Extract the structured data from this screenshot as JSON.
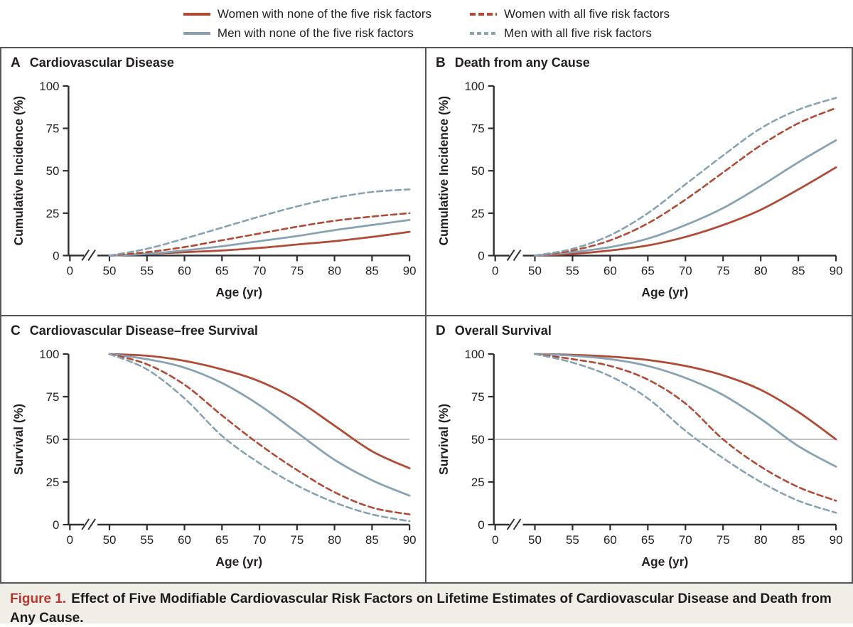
{
  "colors": {
    "women": "#b24a35",
    "men": "#87a2b3",
    "axis": "#2f2f31",
    "text": "#231f20",
    "border": "#55565a",
    "reference_line": "#aeaeae",
    "caption_bg": "#f1eee7",
    "caption_label_red": "#b5392f"
  },
  "legend": {
    "columns": [
      {
        "items": [
          {
            "label": "Women with none of the five risk factors",
            "color": "#b24a35",
            "dashed": false
          },
          {
            "label": "Men with none of the five risk factors",
            "color": "#87a2b3",
            "dashed": false
          }
        ]
      },
      {
        "items": [
          {
            "label": "Women with all five risk factors",
            "color": "#b24a35",
            "dashed": true
          },
          {
            "label": "Men with all five risk factors",
            "color": "#87a2b3",
            "dashed": true
          }
        ]
      }
    ]
  },
  "figure_caption": {
    "label": "Figure 1.",
    "text": "Effect of Five Modifiable Cardiovascular Risk Factors on Lifetime Estimates of Cardiovascular Disease and Death from Any Cause."
  },
  "chart_data": [
    {
      "id": "A",
      "title": "Cardiovascular Disease",
      "type": "line",
      "xlabel": "Age (yr)",
      "ylabel": "Cumulative Incidence (%)",
      "x": [
        50,
        55,
        60,
        65,
        70,
        75,
        80,
        85,
        90
      ],
      "x_ticks": [
        0,
        50,
        55,
        60,
        65,
        70,
        75,
        80,
        85,
        90
      ],
      "axis_break": true,
      "ylim": [
        0,
        100
      ],
      "y_ticks": [
        0,
        25,
        50,
        75,
        100
      ],
      "reference_line_y": null,
      "series": [
        {
          "name": "Women with none of the five risk factors",
          "color": "#b24a35",
          "dashed": false,
          "values": [
            0,
            1,
            2,
            3,
            4.5,
            6.5,
            8.5,
            11,
            14
          ]
        },
        {
          "name": "Men with none of the five risk factors",
          "color": "#87a2b3",
          "dashed": false,
          "values": [
            0,
            1,
            3,
            5.5,
            8.5,
            11.5,
            15,
            18,
            21
          ]
        },
        {
          "name": "Women with all five risk factors",
          "color": "#b24a35",
          "dashed": true,
          "values": [
            0,
            2,
            5,
            9,
            13,
            17,
            20.5,
            23,
            25
          ]
        },
        {
          "name": "Men with all five risk factors",
          "color": "#87a2b3",
          "dashed": true,
          "values": [
            0,
            4,
            10,
            16.5,
            23,
            29,
            34,
            37.5,
            39
          ]
        }
      ]
    },
    {
      "id": "B",
      "title": "Death from any Cause",
      "type": "line",
      "xlabel": "Age (yr)",
      "ylabel": "Cumulative Incidence (%)",
      "x": [
        50,
        55,
        60,
        65,
        70,
        75,
        80,
        85,
        90
      ],
      "x_ticks": [
        0,
        50,
        55,
        60,
        65,
        70,
        75,
        80,
        85,
        90
      ],
      "axis_break": true,
      "ylim": [
        0,
        100
      ],
      "y_ticks": [
        0,
        25,
        50,
        75,
        100
      ],
      "reference_line_y": null,
      "series": [
        {
          "name": "Women with none of the five risk factors",
          "color": "#b24a35",
          "dashed": false,
          "values": [
            0,
            1,
            3,
            6,
            11,
            18,
            27,
            39,
            52
          ]
        },
        {
          "name": "Men with none of the five risk factors",
          "color": "#87a2b3",
          "dashed": false,
          "values": [
            0,
            2,
            5,
            10,
            18,
            28,
            41,
            55,
            68
          ]
        },
        {
          "name": "Women with all five risk factors",
          "color": "#b24a35",
          "dashed": true,
          "values": [
            0,
            3,
            9,
            19,
            33,
            49,
            65,
            78,
            87
          ]
        },
        {
          "name": "Men with all five risk factors",
          "color": "#87a2b3",
          "dashed": true,
          "values": [
            0,
            4,
            12,
            25,
            42,
            59,
            75,
            86,
            93
          ]
        }
      ]
    },
    {
      "id": "C",
      "title": "Cardiovascular Disease–free Survival",
      "type": "line",
      "xlabel": "Age (yr)",
      "ylabel": "Survival (%)",
      "x": [
        50,
        55,
        60,
        65,
        70,
        75,
        80,
        85,
        90
      ],
      "x_ticks": [
        0,
        50,
        55,
        60,
        65,
        70,
        75,
        80,
        85,
        90
      ],
      "axis_break": true,
      "ylim": [
        0,
        100
      ],
      "y_ticks": [
        0,
        25,
        50,
        75,
        100
      ],
      "reference_line_y": 50,
      "series": [
        {
          "name": "Women with none of the five risk factors",
          "color": "#b24a35",
          "dashed": false,
          "values": [
            100,
            99,
            96,
            91,
            84,
            73,
            58,
            43,
            33
          ]
        },
        {
          "name": "Men with none of the five risk factors",
          "color": "#87a2b3",
          "dashed": false,
          "values": [
            100,
            97,
            92,
            83,
            70,
            54,
            38,
            26,
            17
          ]
        },
        {
          "name": "Women with all five risk factors",
          "color": "#b24a35",
          "dashed": true,
          "values": [
            100,
            94,
            82,
            64,
            47,
            32,
            19,
            10,
            6
          ]
        },
        {
          "name": "Men with all five risk factors",
          "color": "#87a2b3",
          "dashed": true,
          "values": [
            100,
            91,
            74,
            52,
            36,
            23,
            13,
            6,
            2
          ]
        }
      ]
    },
    {
      "id": "D",
      "title": "Overall Survival",
      "type": "line",
      "xlabel": "Age (yr)",
      "ylabel": "Survival (%)",
      "x": [
        50,
        55,
        60,
        65,
        70,
        75,
        80,
        85,
        90
      ],
      "x_ticks": [
        0,
        50,
        55,
        60,
        65,
        70,
        75,
        80,
        85,
        90
      ],
      "axis_break": true,
      "ylim": [
        0,
        100
      ],
      "y_ticks": [
        0,
        25,
        50,
        75,
        100
      ],
      "reference_line_y": 50,
      "series": [
        {
          "name": "Women with none of the five risk factors",
          "color": "#b24a35",
          "dashed": false,
          "values": [
            100,
            99.5,
            98.5,
            96.5,
            93,
            87.5,
            79,
            66,
            50
          ]
        },
        {
          "name": "Men with none of the five risk factors",
          "color": "#87a2b3",
          "dashed": false,
          "values": [
            100,
            99,
            97,
            93,
            86,
            76,
            62,
            46,
            34
          ]
        },
        {
          "name": "Women with all five risk factors",
          "color": "#b24a35",
          "dashed": true,
          "values": [
            100,
            97,
            93,
            85,
            71,
            50,
            34,
            22,
            14
          ]
        },
        {
          "name": "Men with all five risk factors",
          "color": "#87a2b3",
          "dashed": true,
          "values": [
            100,
            95,
            87,
            74,
            55,
            39,
            25,
            14,
            7
          ]
        }
      ]
    }
  ]
}
